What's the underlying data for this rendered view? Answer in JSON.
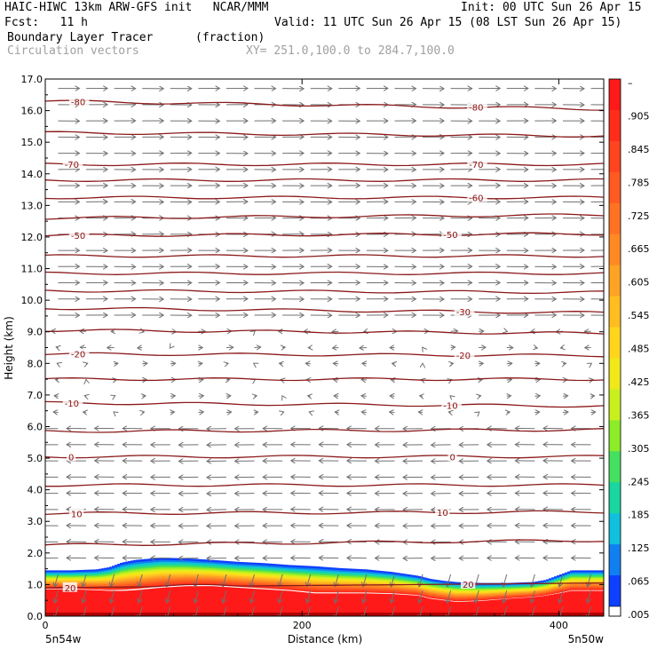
{
  "header": {
    "model_line": "HAIC-HIWC 13km ARW-GFS init   NCAR/MMM",
    "init_line": "Init: 00 UTC Sun 26 Apr 15",
    "fcst_line": "Fcst:   11 h",
    "valid_line": "Valid: 11 UTC Sun 26 Apr 15 (08 LST Sun 26 Apr 15)",
    "field_line": "Boundary Layer Tracer",
    "field_units": "(fraction)",
    "vector_line": "Circulation vectors",
    "xy_line": "XY= 251.0,100.0 to 284.7,100.0"
  },
  "chart_data": {
    "type": "heatmap",
    "xlabel": "Distance (km)",
    "ylabel": "Height (km)",
    "xlim": [
      0,
      435
    ],
    "ylim": [
      0,
      17
    ],
    "x_ticks": [
      "0",
      "200",
      "400"
    ],
    "y_ticks": [
      "0.0",
      "1.0",
      "2.0",
      "3.0",
      "4.0",
      "5.0",
      "6.0",
      "7.0",
      "8.0",
      "9.0",
      "10.0",
      "11.0",
      "12.0",
      "13.0",
      "14.0",
      "15.0",
      "16.0",
      "17.0"
    ],
    "x_end_labels": {
      "left": "5n54w",
      "right": "5n50w"
    },
    "colorbar": {
      "labels": [
        "–",
        ".905",
        ".845",
        ".785",
        ".725",
        ".665",
        ".605",
        ".545",
        ".485",
        ".425",
        ".365",
        ".305",
        ".245",
        ".185",
        ".125",
        ".065",
        ".005"
      ],
      "colors": [
        "#ff1a1a",
        "#ff2d1a",
        "#ff4420",
        "#ff5a22",
        "#ff7224",
        "#ff8a24",
        "#ffa324",
        "#ffbd22",
        "#ffd61c",
        "#f0e81a",
        "#c8f01e",
        "#8cec2a",
        "#45e060",
        "#1ad6a0",
        "#10c0dc",
        "#1080f0",
        "#1040ff"
      ],
      "low_color": "#ffffff"
    },
    "tracer_layer": {
      "x": [
        0,
        20,
        40,
        50,
        60,
        70,
        90,
        110,
        130,
        150,
        170,
        190,
        210,
        230,
        250,
        270,
        290,
        300,
        310,
        320,
        340,
        360,
        380,
        390,
        400,
        410,
        420,
        435
      ],
      "top": [
        1.45,
        1.45,
        1.48,
        1.55,
        1.7,
        1.78,
        1.85,
        1.83,
        1.78,
        1.72,
        1.68,
        1.62,
        1.58,
        1.52,
        1.48,
        1.4,
        1.28,
        1.18,
        1.12,
        1.08,
        1.05,
        1.05,
        1.08,
        1.15,
        1.3,
        1.45,
        1.45,
        1.45
      ],
      "red_top": [
        0.85,
        0.85,
        0.82,
        0.8,
        0.8,
        0.82,
        0.9,
        0.95,
        0.95,
        0.9,
        0.85,
        0.8,
        0.72,
        0.72,
        0.72,
        0.7,
        0.65,
        0.55,
        0.5,
        0.45,
        0.48,
        0.55,
        0.6,
        0.65,
        0.72,
        0.8,
        0.8,
        0.8
      ]
    },
    "temperature_contours": {
      "units": "C",
      "lines": [
        {
          "value": -80,
          "label": "-80",
          "y_left": 16.3,
          "y_right": 16.05,
          "labels_at_x": [
            20,
            330
          ]
        },
        {
          "value": -75,
          "label": "",
          "y_left": 15.3,
          "y_right": 15.2,
          "labels_at_x": []
        },
        {
          "value": -70,
          "label": "-70",
          "y_left": 14.3,
          "y_right": 14.3,
          "labels_at_x": [
            15,
            330
          ]
        },
        {
          "value": -65,
          "label": "",
          "y_left": 13.8,
          "y_right": 13.8,
          "labels_at_x": []
        },
        {
          "value": -60,
          "label": "-60",
          "y_left": 13.25,
          "y_right": 13.25,
          "labels_at_x": [
            330
          ]
        },
        {
          "value": -55,
          "label": "",
          "y_left": 12.6,
          "y_right": 12.7,
          "labels_at_x": []
        },
        {
          "value": -50,
          "label": "-50",
          "y_left": 12.05,
          "y_right": 12.1,
          "labels_at_x": [
            20,
            310
          ]
        },
        {
          "value": -45,
          "label": "",
          "y_left": 11.4,
          "y_right": 11.4,
          "labels_at_x": []
        },
        {
          "value": -40,
          "label": "",
          "y_left": 10.85,
          "y_right": 10.85,
          "labels_at_x": []
        },
        {
          "value": -35,
          "label": "",
          "y_left": 10.3,
          "y_right": 10.25,
          "labels_at_x": []
        },
        {
          "value": -30,
          "label": "-30",
          "y_left": 9.75,
          "y_right": 9.6,
          "labels_at_x": [
            320
          ]
        },
        {
          "value": -25,
          "label": "",
          "y_left": 9.05,
          "y_right": 8.95,
          "labels_at_x": []
        },
        {
          "value": -20,
          "label": "-20",
          "y_left": 8.3,
          "y_right": 8.25,
          "labels_at_x": [
            20,
            320
          ]
        },
        {
          "value": -15,
          "label": "",
          "y_left": 7.5,
          "y_right": 7.5,
          "labels_at_x": []
        },
        {
          "value": -10,
          "label": "-10",
          "y_left": 6.75,
          "y_right": 6.65,
          "labels_at_x": [
            15,
            310
          ]
        },
        {
          "value": -5,
          "label": "",
          "y_left": 5.85,
          "y_right": 5.9,
          "labels_at_x": []
        },
        {
          "value": 0,
          "label": "0",
          "y_left": 5.05,
          "y_right": 5.05,
          "labels_at_x": [
            18,
            315
          ]
        },
        {
          "value": 5,
          "label": "",
          "y_left": 4.15,
          "y_right": 4.15,
          "labels_at_x": []
        },
        {
          "value": 10,
          "label": "10",
          "y_left": 3.25,
          "y_right": 3.3,
          "labels_at_x": [
            20,
            305
          ]
        },
        {
          "value": 15,
          "label": "",
          "y_left": 2.25,
          "y_right": 2.4,
          "labels_at_x": []
        },
        {
          "value": 20,
          "label": "20",
          "y_left": 0.9,
          "y_right": 1.05,
          "labels_at_x": [
            15,
            325
          ]
        }
      ]
    },
    "vectors": {
      "note_direction": "rightward above ~9 km, weak/variable 6-9 km, leftward below ~5.5 km"
    }
  }
}
